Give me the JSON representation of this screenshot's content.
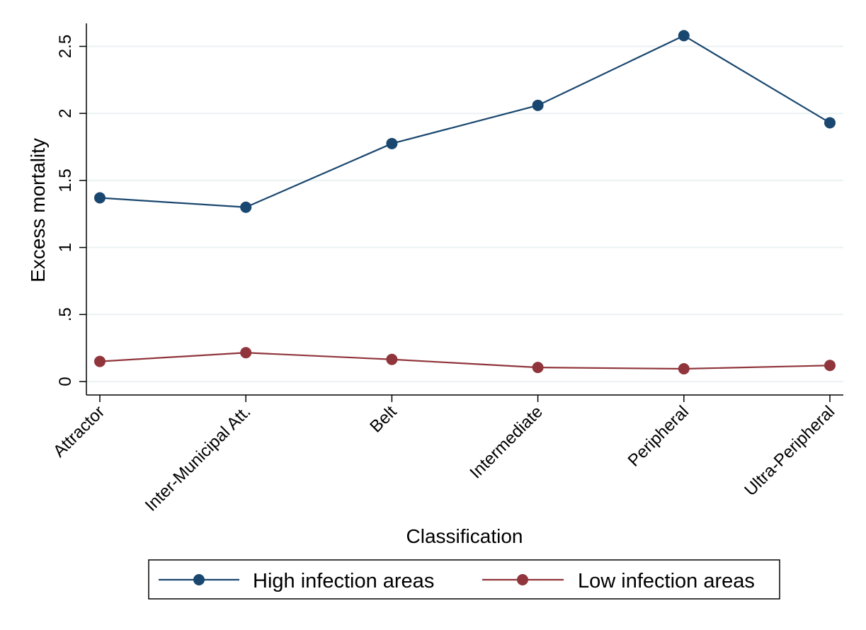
{
  "chart_data": {
    "type": "line",
    "xlabel": "Classification",
    "ylabel": "Excess mortality",
    "categories": [
      "Attractor",
      "Inter-Municipal Att.",
      "Belt",
      "Intermediate",
      "Peripheral",
      "Ultra-Peripheral"
    ],
    "ylim": [
      -0.1,
      2.68
    ],
    "yticks": [
      0,
      0.5,
      1,
      1.5,
      2,
      2.5
    ],
    "ytick_labels": [
      "0",
      ".5",
      "1",
      "1.5",
      "2",
      "2.5"
    ],
    "grid": true,
    "legend_position": "bottom",
    "series": [
      {
        "name": "High infection areas",
        "color": "#1a476f",
        "values": [
          1.37,
          1.3,
          1.775,
          2.06,
          2.58,
          1.93
        ]
      },
      {
        "name": "Low infection areas",
        "color": "#90353b",
        "values": [
          0.15,
          0.215,
          0.165,
          0.105,
          0.095,
          0.12
        ]
      }
    ]
  }
}
